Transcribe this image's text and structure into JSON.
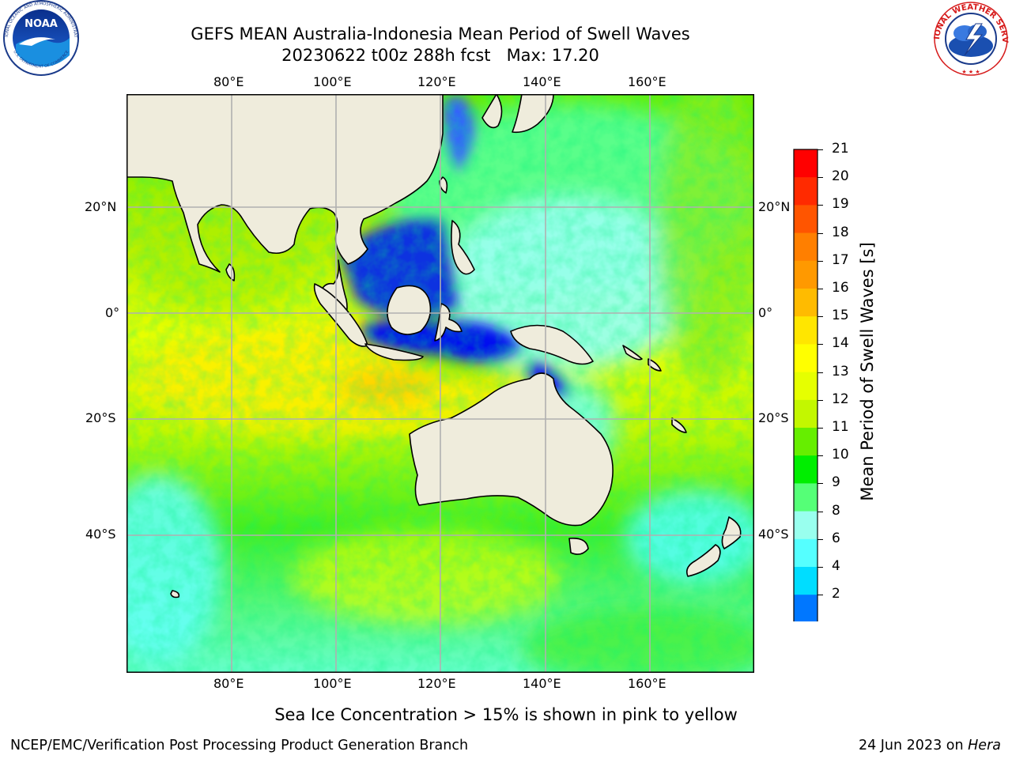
{
  "header": {
    "title_line1": "GEFS MEAN Australia-Indonesia Mean Period of Swell Waves",
    "title_line2": "20230622 t00z 288h fcst   Max: 17.20"
  },
  "logos": {
    "left": {
      "icon": "noaa-logo-icon",
      "text": "NOAA",
      "ring_text": "NATIONAL OCEANIC AND ATMOSPHERIC ADMINISTRATION",
      "bottom_text": "U.S. DEPARTMENT OF COMMERCE"
    },
    "right": {
      "icon": "national-weather-service-logo-icon",
      "ring_text": "NATIONAL WEATHER SERVICE"
    }
  },
  "map": {
    "lon_labels": [
      "80°E",
      "100°E",
      "120°E",
      "140°E",
      "160°E"
    ],
    "lat_labels": [
      "20°N",
      "0°",
      "20°S",
      "40°S"
    ],
    "land_color": "#efecdc",
    "grid_color": "#b0b0b0"
  },
  "colorbar": {
    "label": "Mean Period of Swell Waves [s]",
    "ticks": [
      "21",
      "20",
      "19",
      "18",
      "17",
      "16",
      "15",
      "14",
      "13",
      "12",
      "11",
      "10",
      "9",
      "8",
      "6",
      "4",
      "2"
    ],
    "colors_top_to_bottom": [
      "#ff0000",
      "#ff2a00",
      "#ff5500",
      "#ff7f00",
      "#ff9900",
      "#ffbb00",
      "#ffe600",
      "#ffff00",
      "#e6ff00",
      "#c3f700",
      "#66ee00",
      "#00ee00",
      "#55ff77",
      "#99ffee",
      "#55ffff",
      "#00ddff",
      "#0077ff"
    ],
    "extend_color": "#0000ff"
  },
  "note": "Sea Ice Concentration > 15% is shown in pink to yellow",
  "footer": {
    "left": "NCEP/EMC/Verification Post Processing Product Generation Branch",
    "right_prefix": "24 Jun 2023 on ",
    "right_host": "Hera"
  }
}
